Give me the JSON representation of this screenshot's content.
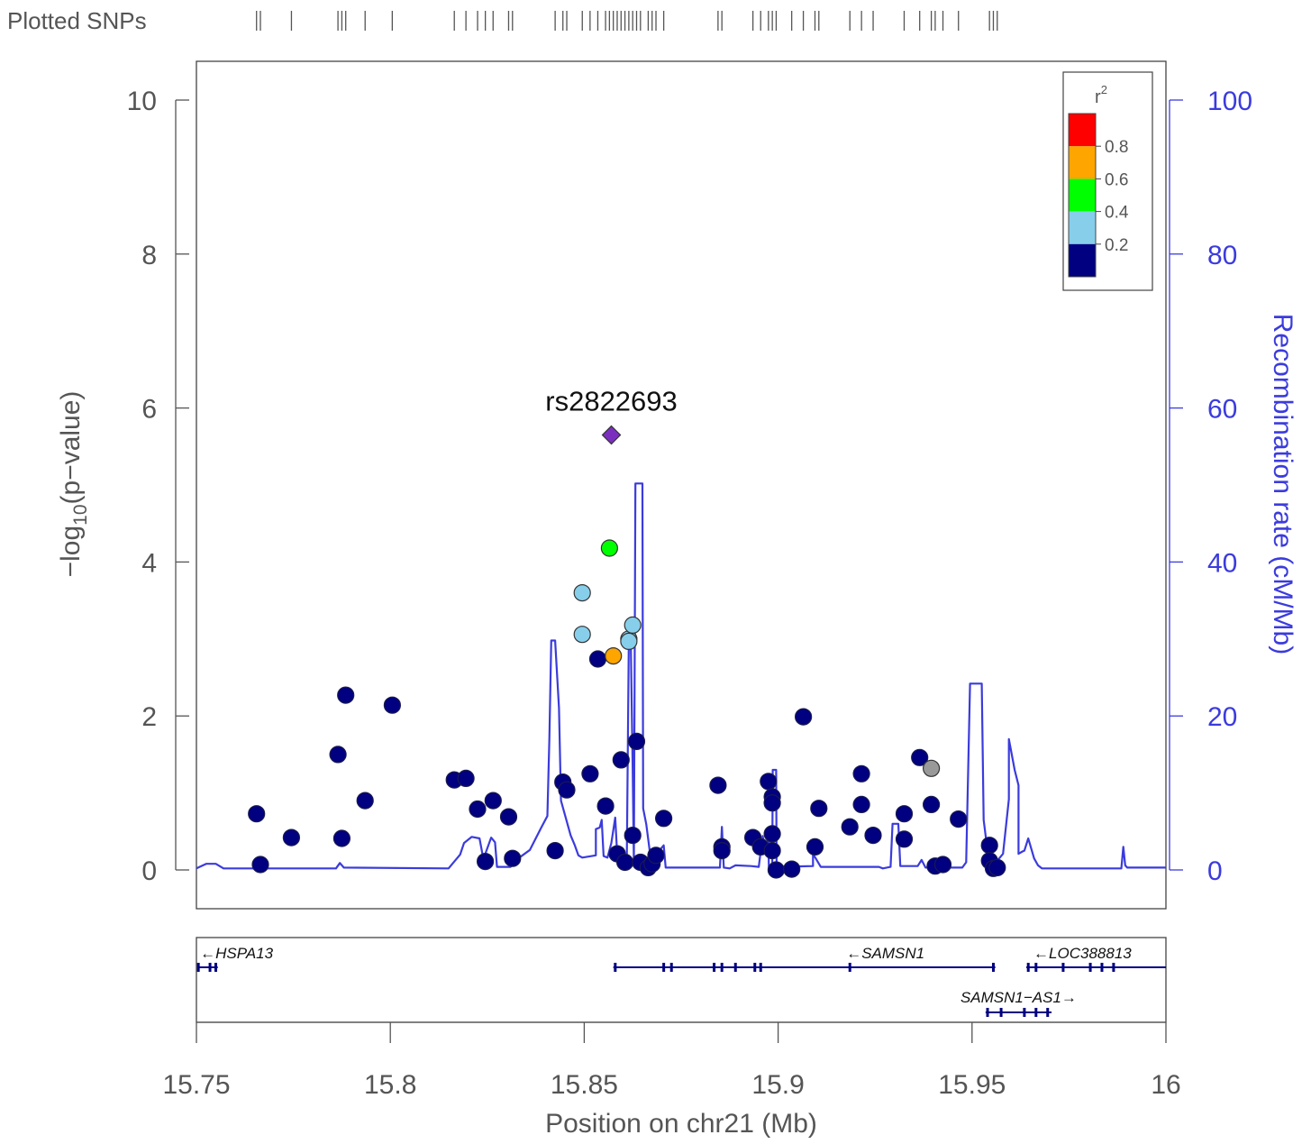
{
  "chart_data": {
    "type": "scatter",
    "plotted_snps_label": "Plotted SNPs",
    "xlabel": "Position on chr21 (Mb)",
    "ylabel_left": "-log10(p-value)",
    "ylabel_left_parts": {
      "prefix": "−log",
      "sub": "10",
      "suffix": "(p−value)"
    },
    "ylabel_right": "Recombination rate (cM/Mb)",
    "xlim": [
      15.75,
      16.0
    ],
    "ylim_left": [
      0,
      10
    ],
    "ylim_right": [
      0,
      100
    ],
    "x_ticks": [
      15.75,
      15.8,
      15.85,
      15.9,
      15.95,
      16.0
    ],
    "x_tick_labels": [
      "15.75",
      "15.8",
      "15.85",
      "15.9",
      "15.95",
      "16"
    ],
    "y_left_ticks": [
      0,
      2,
      4,
      6,
      8,
      10
    ],
    "y_right_ticks": [
      0,
      20,
      40,
      60,
      80,
      100
    ],
    "lead_snp": {
      "name": "rs2822693",
      "x": 15.857,
      "y": 5.65,
      "color": "#7b2fbf"
    },
    "legend": {
      "title_base": "r",
      "title_sup": "2",
      "bins": [
        {
          "label": "",
          "color": "#ff0000"
        },
        {
          "label": "0.8",
          "color": "#ffa500"
        },
        {
          "label": "0.6",
          "color": "#00ff00"
        },
        {
          "label": "0.4",
          "color": "#87ceeb"
        },
        {
          "label": "0.2",
          "color": "#000080"
        }
      ],
      "tick_labels": [
        "0.8",
        "0.6",
        "0.4",
        "0.2"
      ]
    },
    "colors": {
      "r2_below_0_2": "#000080",
      "r2_0_2_to_0_4": "#87ceeb",
      "r2_0_4_to_0_6": "#00ff00",
      "r2_0_6_to_0_8": "#ffa500",
      "r2_0_8_to_1": "#ff0000",
      "no_ld_info": "#999999",
      "recombination_line": "#3b3bdd",
      "gene": "#000080"
    },
    "points": [
      {
        "x": 15.7655,
        "y": 0.73,
        "r2": "low"
      },
      {
        "x": 15.7665,
        "y": 0.07,
        "r2": "low"
      },
      {
        "x": 15.7745,
        "y": 0.42,
        "r2": "low"
      },
      {
        "x": 15.7865,
        "y": 1.5,
        "r2": "low"
      },
      {
        "x": 15.7875,
        "y": 0.41,
        "r2": "low"
      },
      {
        "x": 15.7885,
        "y": 2.27,
        "r2": "low"
      },
      {
        "x": 15.7935,
        "y": 0.9,
        "r2": "low"
      },
      {
        "x": 15.8005,
        "y": 2.14,
        "r2": "low"
      },
      {
        "x": 15.8165,
        "y": 1.17,
        "r2": "low"
      },
      {
        "x": 15.8195,
        "y": 1.19,
        "r2": "low"
      },
      {
        "x": 15.8225,
        "y": 0.79,
        "r2": "low"
      },
      {
        "x": 15.8245,
        "y": 0.11,
        "r2": "low"
      },
      {
        "x": 15.8265,
        "y": 0.9,
        "r2": "low"
      },
      {
        "x": 15.8305,
        "y": 0.69,
        "r2": "low"
      },
      {
        "x": 15.8315,
        "y": 0.15,
        "r2": "low"
      },
      {
        "x": 15.8425,
        "y": 0.25,
        "r2": "low"
      },
      {
        "x": 15.8445,
        "y": 1.14,
        "r2": "low"
      },
      {
        "x": 15.8455,
        "y": 1.04,
        "r2": "low"
      },
      {
        "x": 15.8495,
        "y": 3.6,
        "r2": "0.2-0.4"
      },
      {
        "x": 15.8495,
        "y": 3.06,
        "r2": "0.2-0.4"
      },
      {
        "x": 15.8515,
        "y": 1.25,
        "r2": "low"
      },
      {
        "x": 15.8535,
        "y": 2.74,
        "r2": "low"
      },
      {
        "x": 15.8555,
        "y": 0.83,
        "r2": "low"
      },
      {
        "x": 15.8565,
        "y": 4.18,
        "r2": "0.4-0.6"
      },
      {
        "x": 15.8575,
        "y": 2.78,
        "r2": "0.6-0.8"
      },
      {
        "x": 15.8585,
        "y": 0.21,
        "r2": "low"
      },
      {
        "x": 15.8595,
        "y": 1.43,
        "r2": "low"
      },
      {
        "x": 15.8605,
        "y": 0.1,
        "r2": "low"
      },
      {
        "x": 15.8615,
        "y": 3.0,
        "r2": "0.2-0.4"
      },
      {
        "x": 15.8615,
        "y": 2.97,
        "r2": "0.2-0.4"
      },
      {
        "x": 15.8625,
        "y": 0.45,
        "r2": "low"
      },
      {
        "x": 15.8625,
        "y": 3.18,
        "r2": "0.2-0.4"
      },
      {
        "x": 15.8635,
        "y": 1.67,
        "r2": "low"
      },
      {
        "x": 15.8645,
        "y": 0.1,
        "r2": "low"
      },
      {
        "x": 15.8665,
        "y": 0.03,
        "r2": "low"
      },
      {
        "x": 15.8675,
        "y": 0.08,
        "r2": "low"
      },
      {
        "x": 15.8685,
        "y": 0.19,
        "r2": "low"
      },
      {
        "x": 15.8705,
        "y": 0.67,
        "r2": "low"
      },
      {
        "x": 15.8845,
        "y": 1.1,
        "r2": "low"
      },
      {
        "x": 15.8855,
        "y": 0.3,
        "r2": "low"
      },
      {
        "x": 15.8855,
        "y": 0.25,
        "r2": "low"
      },
      {
        "x": 15.8935,
        "y": 0.42,
        "r2": "low"
      },
      {
        "x": 15.8955,
        "y": 0.3,
        "r2": "low"
      },
      {
        "x": 15.8975,
        "y": 1.15,
        "r2": "low"
      },
      {
        "x": 15.8985,
        "y": 0.95,
        "r2": "low"
      },
      {
        "x": 15.8985,
        "y": 0.87,
        "r2": "low"
      },
      {
        "x": 15.8985,
        "y": 0.47,
        "r2": "low"
      },
      {
        "x": 15.8985,
        "y": 0.25,
        "r2": "low"
      },
      {
        "x": 15.8995,
        "y": 0.0,
        "r2": "low"
      },
      {
        "x": 15.9035,
        "y": 0.01,
        "r2": "low"
      },
      {
        "x": 15.9065,
        "y": 1.99,
        "r2": "low"
      },
      {
        "x": 15.9095,
        "y": 0.3,
        "r2": "low"
      },
      {
        "x": 15.9105,
        "y": 0.8,
        "r2": "low"
      },
      {
        "x": 15.9185,
        "y": 0.56,
        "r2": "low"
      },
      {
        "x": 15.9215,
        "y": 1.25,
        "r2": "low"
      },
      {
        "x": 15.9215,
        "y": 0.85,
        "r2": "low"
      },
      {
        "x": 15.9245,
        "y": 0.45,
        "r2": "low"
      },
      {
        "x": 15.9325,
        "y": 0.73,
        "r2": "low"
      },
      {
        "x": 15.9325,
        "y": 0.4,
        "r2": "low"
      },
      {
        "x": 15.9365,
        "y": 1.46,
        "r2": "low"
      },
      {
        "x": 15.9395,
        "y": 1.32,
        "r2": "none"
      },
      {
        "x": 15.9395,
        "y": 0.85,
        "r2": "low"
      },
      {
        "x": 15.9405,
        "y": 0.05,
        "r2": "low"
      },
      {
        "x": 15.9425,
        "y": 0.07,
        "r2": "low"
      },
      {
        "x": 15.9465,
        "y": 0.66,
        "r2": "low"
      },
      {
        "x": 15.9545,
        "y": 0.32,
        "r2": "low"
      },
      {
        "x": 15.9545,
        "y": 0.12,
        "r2": "low"
      },
      {
        "x": 15.9555,
        "y": 0.02,
        "r2": "low"
      },
      {
        "x": 15.9565,
        "y": 0.03,
        "r2": "low"
      }
    ],
    "recombination": [
      [
        15.75,
        0.2
      ],
      [
        15.7525,
        0.8
      ],
      [
        15.755,
        0.8
      ],
      [
        15.757,
        0.2
      ],
      [
        15.766,
        0.2
      ],
      [
        15.786,
        0.2
      ],
      [
        15.787,
        0.9
      ],
      [
        15.788,
        0.3
      ],
      [
        15.815,
        0.2
      ],
      [
        15.818,
        2.0
      ],
      [
        15.819,
        3.5
      ],
      [
        15.821,
        4.3
      ],
      [
        15.823,
        4.1
      ],
      [
        15.824,
        1.4
      ],
      [
        15.826,
        4.2
      ],
      [
        15.827,
        3.6
      ],
      [
        15.8275,
        0.4
      ],
      [
        15.831,
        0.4
      ],
      [
        15.833,
        1.5
      ],
      [
        15.836,
        2.6
      ],
      [
        15.839,
        5.6
      ],
      [
        15.8405,
        7.0
      ],
      [
        15.841,
        17.0
      ],
      [
        15.8415,
        29.8
      ],
      [
        15.8425,
        29.8
      ],
      [
        15.8435,
        21.0
      ],
      [
        15.844,
        9.0
      ],
      [
        15.8465,
        4.5
      ],
      [
        15.8475,
        3.3
      ],
      [
        15.8485,
        1.9
      ],
      [
        15.8495,
        1.6
      ],
      [
        15.853,
        1.9
      ],
      [
        15.853,
        5.3
      ],
      [
        15.854,
        5.5
      ],
      [
        15.8545,
        6.5
      ],
      [
        15.855,
        1.8
      ],
      [
        15.856,
        1.6
      ],
      [
        15.857,
        3.5
      ],
      [
        15.858,
        6.8
      ],
      [
        15.8585,
        2.0
      ],
      [
        15.8605,
        1.9
      ],
      [
        15.861,
        2.0
      ],
      [
        15.8615,
        30.0
      ],
      [
        15.862,
        30.0
      ],
      [
        15.8625,
        13.0
      ],
      [
        15.8628,
        0.9
      ],
      [
        15.8632,
        50.2
      ],
      [
        15.865,
        50.2
      ],
      [
        15.8652,
        8.0
      ],
      [
        15.866,
        5.9
      ],
      [
        15.867,
        2.0
      ],
      [
        15.8685,
        0.8
      ],
      [
        15.8695,
        2.6
      ],
      [
        15.8705,
        3.2
      ],
      [
        15.871,
        0.3
      ],
      [
        15.885,
        0.3
      ],
      [
        15.8855,
        5.6
      ],
      [
        15.886,
        0.3
      ],
      [
        15.8875,
        0.2
      ],
      [
        15.889,
        0.6
      ],
      [
        15.893,
        0.5
      ],
      [
        15.895,
        0.4
      ],
      [
        15.896,
        4.4
      ],
      [
        15.8965,
        3.3
      ],
      [
        15.8975,
        3.9
      ],
      [
        15.8976,
        0.4
      ],
      [
        15.8985,
        0.4
      ],
      [
        15.8986,
        13.0
      ],
      [
        15.8995,
        13.0
      ],
      [
        15.8996,
        0.4
      ],
      [
        15.909,
        0.5
      ],
      [
        15.909,
        2.1
      ],
      [
        15.911,
        0.4
      ],
      [
        15.926,
        0.4
      ],
      [
        15.927,
        0.2
      ],
      [
        15.929,
        0.4
      ],
      [
        15.9295,
        6.0
      ],
      [
        15.931,
        6.0
      ],
      [
        15.9315,
        0.5
      ],
      [
        15.936,
        0.5
      ],
      [
        15.937,
        1.3
      ],
      [
        15.938,
        0.3
      ],
      [
        15.9475,
        0.3
      ],
      [
        15.9485,
        1.0
      ],
      [
        15.9495,
        24.2
      ],
      [
        15.9525,
        24.2
      ],
      [
        15.953,
        6.5
      ],
      [
        15.9545,
        0.4
      ],
      [
        15.9555,
        0.6
      ],
      [
        15.958,
        2.1
      ],
      [
        15.9595,
        9.2
      ],
      [
        15.9595,
        17.0
      ],
      [
        15.961,
        13.0
      ],
      [
        15.962,
        11.0
      ],
      [
        15.962,
        2.1
      ],
      [
        15.963,
        2.4
      ],
      [
        15.9635,
        2.5
      ],
      [
        15.9645,
        4.1
      ],
      [
        15.966,
        1.5
      ],
      [
        15.967,
        0.6
      ],
      [
        15.968,
        0.2
      ],
      [
        15.977,
        0.2
      ],
      [
        15.9885,
        0.2
      ],
      [
        15.989,
        3.0
      ],
      [
        15.9895,
        0.6
      ],
      [
        15.99,
        0.3
      ],
      [
        16.0,
        0.3
      ]
    ],
    "plotted_snp_positions": [
      15.7655,
      15.7665,
      15.7745,
      15.7865,
      15.7875,
      15.7885,
      15.7935,
      15.8005,
      15.8165,
      15.8195,
      15.8225,
      15.8245,
      15.8265,
      15.8305,
      15.8315,
      15.8425,
      15.8445,
      15.8455,
      15.8495,
      15.8515,
      15.8535,
      15.8555,
      15.8565,
      15.8575,
      15.8585,
      15.8595,
      15.8605,
      15.8615,
      15.8625,
      15.8635,
      15.8645,
      15.8665,
      15.8675,
      15.8685,
      15.8705,
      15.8845,
      15.8855,
      15.8935,
      15.8955,
      15.8975,
      15.8985,
      15.8995,
      15.9035,
      15.9065,
      15.9095,
      15.9105,
      15.9185,
      15.9215,
      15.9245,
      15.9325,
      15.9365,
      15.9395,
      15.9405,
      15.9425,
      15.9465,
      15.9545,
      15.9555,
      15.9565
    ],
    "genes": [
      {
        "name": "HSPA13",
        "label": "←HSPA13",
        "strand": "-",
        "row": 0,
        "start": 15.7505,
        "end": 15.7555,
        "exons": [
          15.7505,
          15.7535,
          15.755
        ]
      },
      {
        "name": "SAMSN1",
        "label": "←SAMSN1",
        "strand": "-",
        "row": 0,
        "start": 15.8575,
        "end": 15.956,
        "exons": [
          15.858,
          15.8705,
          15.8725,
          15.8835,
          15.8855,
          15.889,
          15.894,
          15.8955,
          15.9185,
          15.9555
        ]
      },
      {
        "name": "LOC388813",
        "label": "←LOC388813",
        "strand": "-",
        "row": 0,
        "start": 15.964,
        "end": 16.0,
        "exons": [
          15.9645,
          15.9665,
          15.9735,
          15.9805,
          15.9835,
          15.9865
        ]
      },
      {
        "name": "SAMSN1-AS1",
        "label": "SAMSN1−AS1→",
        "strand": "+",
        "row": 1,
        "start": 15.9535,
        "end": 15.9705,
        "exons": [
          15.954,
          15.9575,
          15.9635,
          15.9665,
          15.9695
        ]
      }
    ]
  }
}
